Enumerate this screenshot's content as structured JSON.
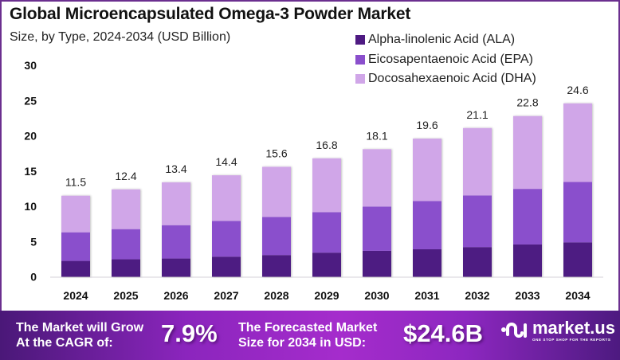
{
  "chart_data": {
    "type": "bar",
    "stacked": true,
    "title": "Global Microencapsulated  Omega-3 Powder Market",
    "subtitle": "Size, by Type, 2024-2034 (USD Billion)",
    "xlabel": "",
    "ylabel": "",
    "ylim": [
      0,
      30
    ],
    "yticks": [
      0,
      5,
      10,
      15,
      20,
      25,
      30
    ],
    "grid": false,
    "legend_position": "top-right",
    "categories": [
      "2024",
      "2025",
      "2026",
      "2027",
      "2028",
      "2029",
      "2030",
      "2031",
      "2032",
      "2033",
      "2034"
    ],
    "series": [
      {
        "name": "Alpha-linolenic Acid (ALA)",
        "color": "#4e1a82",
        "values": [
          2.25,
          2.48,
          2.59,
          2.85,
          3.08,
          3.42,
          3.68,
          3.9,
          4.21,
          4.58,
          4.88
        ]
      },
      {
        "name": "Eicosapentaenoic Acid (EPA)",
        "color": "#8a4fcc",
        "values": [
          4.06,
          4.28,
          4.73,
          5.07,
          5.41,
          5.75,
          6.28,
          6.84,
          7.33,
          7.89,
          8.57
        ]
      },
      {
        "name": "Docosahexaenoic Acid (DHA)",
        "color": "#d0a6e8",
        "values": [
          5.19,
          5.64,
          6.08,
          6.48,
          7.11,
          7.63,
          8.14,
          8.86,
          9.56,
          10.33,
          11.15
        ]
      }
    ],
    "totals": [
      11.5,
      12.4,
      13.4,
      14.4,
      15.6,
      16.8,
      18.1,
      19.6,
      21.1,
      22.8,
      24.6
    ],
    "total_labels": [
      "11.5",
      "12.4",
      "13.4",
      "14.4",
      "15.6",
      "16.8",
      "18.1",
      "19.6",
      "21.1",
      "22.8",
      "24.6"
    ]
  },
  "banner": {
    "cagr_label_line1": "The Market will Grow",
    "cagr_label_line2": "At the CAGR of:",
    "cagr_value": "7.9%",
    "forecast_label_line1": "The Forecasted Market",
    "forecast_label_line2": "Size for 2034 in USD:",
    "forecast_value": "$24.6B",
    "brand_name": "market.us",
    "brand_tagline": "ONE STOP SHOP FOR THE REPORTS"
  },
  "colors": {
    "frame": "#6b2f8f",
    "ala": "#4e1a82",
    "epa": "#8a4fcc",
    "dha": "#d0a6e8"
  }
}
